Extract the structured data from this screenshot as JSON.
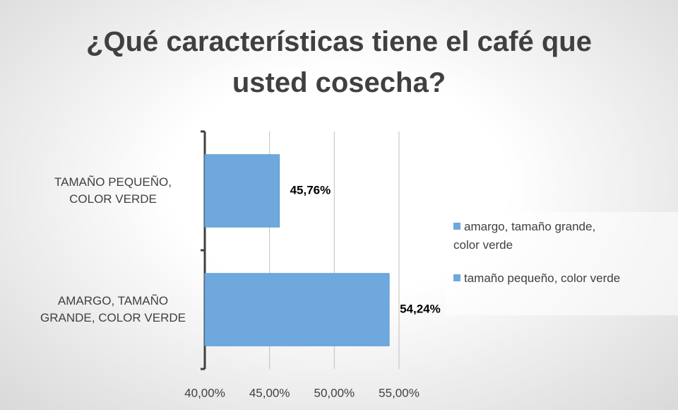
{
  "chart_data": {
    "type": "bar",
    "orientation": "horizontal",
    "title": "¿Qué características tiene el café que usted cosecha?",
    "categories": [
      "TAMAÑO PEQUEÑO, COLOR VERDE",
      "AMARGO, TAMAÑO GRANDE, COLOR VERDE"
    ],
    "series": [
      {
        "name": "amargo, tamaño grande, color verde",
        "color": "#6fa8dc",
        "values": [
          null,
          54.24
        ],
        "value_labels": [
          null,
          "54,24%"
        ]
      },
      {
        "name": "tamaño pequeño, color verde",
        "color": "#6fa8dc",
        "values": [
          45.76,
          null
        ],
        "value_labels": [
          "45,76%",
          null
        ]
      }
    ],
    "xlim": [
      40,
      55
    ],
    "xticks": [
      {
        "value": 40,
        "label": "40,00%"
      },
      {
        "value": 45,
        "label": "45,00%"
      },
      {
        "value": 50,
        "label": "50,00%"
      },
      {
        "value": 55,
        "label": "55,00%"
      }
    ],
    "grid": true,
    "legend": "right"
  }
}
